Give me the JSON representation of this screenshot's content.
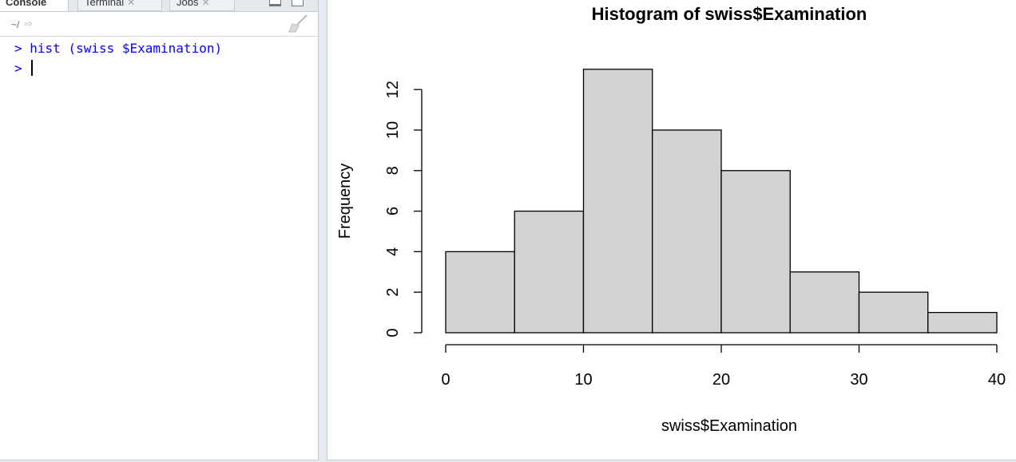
{
  "console": {
    "tabs": [
      {
        "label": "Console",
        "closable": false
      },
      {
        "label": "Terminal",
        "closable": true
      },
      {
        "label": "Jobs",
        "closable": true
      }
    ],
    "path": "~/",
    "lines": [
      {
        "prompt": ">",
        "command": " hist (swiss $Examination)"
      },
      {
        "prompt": ">",
        "command": ""
      }
    ]
  },
  "icons": {
    "goto": "arrow-right-icon",
    "clear": "broom-icon",
    "minimize": "minimize-icon",
    "maximize": "maximize-icon"
  },
  "colors": {
    "command_text": "#0000ff",
    "bar_fill": "#d3d3d3",
    "bar_stroke": "#000000"
  },
  "chart_data": {
    "type": "bar",
    "title": "Histogram of swiss$Examination",
    "xlabel": "swiss$Examination",
    "ylabel": "Frequency",
    "bins": [
      [
        0,
        5
      ],
      [
        5,
        10
      ],
      [
        10,
        15
      ],
      [
        15,
        20
      ],
      [
        20,
        25
      ],
      [
        25,
        30
      ],
      [
        30,
        35
      ],
      [
        35,
        40
      ]
    ],
    "values": [
      4,
      6,
      13,
      10,
      8,
      3,
      2,
      1
    ],
    "xlim": [
      0,
      40
    ],
    "ylim": [
      0,
      13
    ],
    "xticks": [
      0,
      10,
      20,
      30,
      40
    ],
    "xtick_labels": [
      "0",
      "10",
      "20",
      "30",
      "40"
    ],
    "yticks": [
      0,
      2,
      4,
      6,
      8,
      10,
      12
    ],
    "ytick_labels": [
      "0",
      "2",
      "4",
      "6",
      "8",
      "10",
      "12"
    ],
    "grid": false
  }
}
